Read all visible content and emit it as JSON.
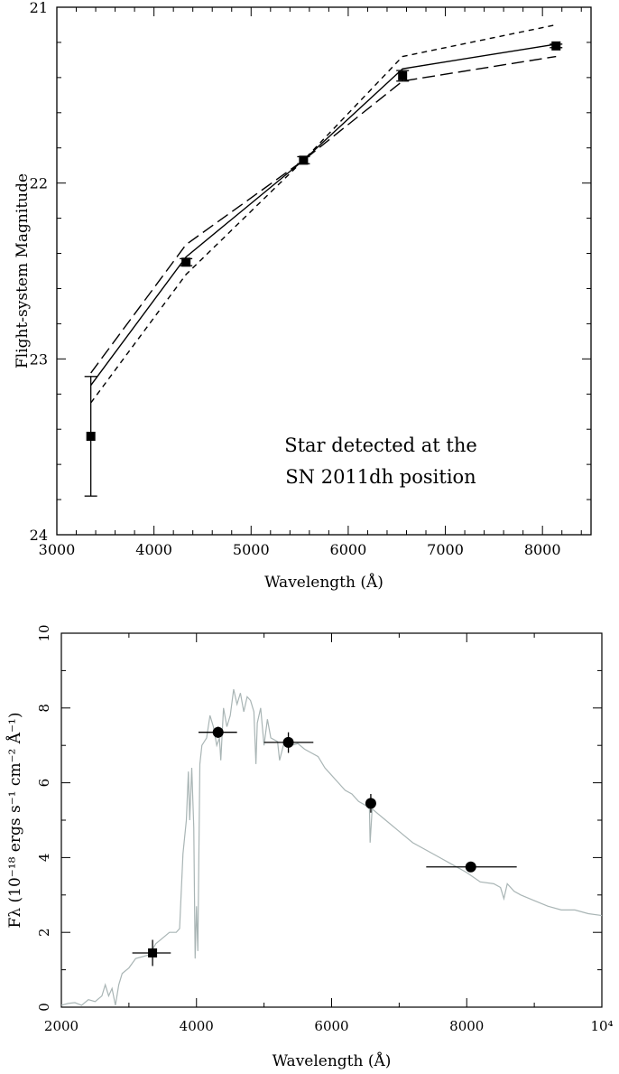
{
  "chart_data": [
    {
      "type": "line",
      "xlabel": "Wavelength (Å)",
      "ylabel": "Flight-system Magnitude",
      "xlim": [
        3000,
        8500
      ],
      "ylim": [
        24,
        21
      ],
      "y_inverted": true,
      "x_ticks": [
        3000,
        4000,
        5000,
        6000,
        7000,
        8000
      ],
      "x_tick_labels": [
        "3000",
        "4000",
        "5000",
        "6000",
        "7000",
        "8000"
      ],
      "y_ticks": [
        21,
        22,
        23,
        24
      ],
      "y_tick_labels": [
        "21",
        "22",
        "23",
        "24"
      ],
      "annotation": [
        "Star detected at the",
        "SN 2011dh position"
      ],
      "grid": false,
      "points": [
        {
          "x": 3350,
          "y": 23.44,
          "ylo": 23.1,
          "yhi": 23.78
        },
        {
          "x": 4330,
          "y": 22.45,
          "ylo": 22.43,
          "yhi": 22.47
        },
        {
          "x": 5540,
          "y": 21.87,
          "ylo": 21.85,
          "yhi": 21.89
        },
        {
          "x": 6560,
          "y": 21.39,
          "ylo": 21.36,
          "yhi": 21.42
        },
        {
          "x": 8140,
          "y": 21.22,
          "ylo": 21.21,
          "yhi": 21.23
        }
      ],
      "series": [
        {
          "style": "solid",
          "x": [
            3350,
            4330,
            5540,
            6560,
            8140
          ],
          "y": [
            23.15,
            22.42,
            21.87,
            21.35,
            21.21
          ]
        },
        {
          "style": "long-dash",
          "x": [
            3350,
            4330,
            5540,
            6560,
            8140
          ],
          "y": [
            23.08,
            22.35,
            21.87,
            21.42,
            21.28
          ]
        },
        {
          "style": "short-dash",
          "x": [
            3350,
            4330,
            5540,
            6560,
            8140
          ],
          "y": [
            23.25,
            22.52,
            21.87,
            21.28,
            21.1
          ]
        }
      ]
    },
    {
      "type": "scatter",
      "xlabel": "Wavelength (Å)",
      "ylabel": "Fλ (10⁻¹⁸ ergs s⁻¹ cm⁻² Å⁻¹)",
      "xlim": [
        2000,
        10000
      ],
      "ylim": [
        0,
        10
      ],
      "x_ticks": [
        2000,
        4000,
        6000,
        8000,
        10000
      ],
      "x_tick_labels": [
        "2000",
        "4000",
        "6000",
        "8000",
        "10⁴"
      ],
      "y_ticks": [
        0,
        2,
        4,
        6,
        8,
        10
      ],
      "y_tick_labels": [
        "0",
        "2",
        "4",
        "6",
        "8",
        "10"
      ],
      "grid": false,
      "spectrum_color": "#a9b5b5",
      "points": [
        {
          "marker": "square",
          "x": 3350,
          "y": 1.45,
          "xlo": 3050,
          "xhi": 3620,
          "ylo": 1.1,
          "yhi": 1.8
        },
        {
          "marker": "circle",
          "x": 4320,
          "y": 7.35,
          "xlo": 4030,
          "xhi": 4600,
          "ylo": 7.2,
          "yhi": 7.5
        },
        {
          "marker": "circle",
          "x": 5360,
          "y": 7.08,
          "xlo": 5000,
          "xhi": 5730,
          "ylo": 6.8,
          "yhi": 7.35
        },
        {
          "marker": "circle",
          "x": 6580,
          "y": 5.45,
          "xlo": 6560,
          "xhi": 6600,
          "ylo": 5.2,
          "yhi": 5.7
        },
        {
          "marker": "circle",
          "x": 8060,
          "y": 3.75,
          "xlo": 7400,
          "xhi": 8740,
          "ylo": 3.65,
          "yhi": 3.85
        }
      ],
      "spectrum": {
        "x": [
          2000,
          2100,
          2200,
          2300,
          2400,
          2500,
          2600,
          2650,
          2700,
          2750,
          2800,
          2850,
          2900,
          3000,
          3100,
          3200,
          3300,
          3400,
          3500,
          3600,
          3700,
          3750,
          3800,
          3850,
          3880,
          3900,
          3930,
          3960,
          3980,
          4000,
          4020,
          4050,
          4080,
          4150,
          4200,
          4250,
          4300,
          4340,
          4360,
          4400,
          4450,
          4500,
          4550,
          4600,
          4650,
          4700,
          4750,
          4800,
          4850,
          4880,
          4900,
          4950,
          5000,
          5050,
          5100,
          5200,
          5230,
          5300,
          5400,
          5500,
          5600,
          5700,
          5800,
          5900,
          6000,
          6100,
          6200,
          6300,
          6400,
          6500,
          6560,
          6570,
          6600,
          6800,
          7000,
          7200,
          7400,
          7600,
          7800,
          8000,
          8200,
          8400,
          8500,
          8550,
          8600,
          8700,
          8800,
          9000,
          9200,
          9400,
          9600,
          9800,
          10000
        ],
        "y": [
          0.05,
          0.1,
          0.12,
          0.05,
          0.2,
          0.15,
          0.3,
          0.6,
          0.3,
          0.5,
          0.05,
          0.6,
          0.9,
          1.05,
          1.3,
          1.35,
          1.4,
          1.7,
          1.85,
          2.0,
          2.0,
          2.1,
          4.1,
          5.0,
          6.3,
          5.0,
          6.4,
          4.8,
          1.3,
          2.7,
          1.5,
          6.5,
          7.0,
          7.2,
          7.8,
          7.5,
          7.0,
          7.2,
          6.6,
          8.0,
          7.5,
          7.8,
          8.5,
          8.1,
          8.4,
          7.9,
          8.3,
          8.2,
          7.9,
          6.5,
          7.6,
          8.0,
          7.0,
          7.7,
          7.2,
          7.1,
          6.6,
          7.1,
          7.0,
          7.05,
          6.9,
          6.8,
          6.7,
          6.4,
          6.2,
          6.0,
          5.8,
          5.7,
          5.5,
          5.4,
          5.3,
          4.4,
          5.3,
          5.0,
          4.7,
          4.4,
          4.2,
          4.0,
          3.8,
          3.6,
          3.35,
          3.3,
          3.2,
          2.9,
          3.3,
          3.1,
          3.0,
          2.85,
          2.7,
          2.6,
          2.6,
          2.5,
          2.45
        ]
      }
    }
  ]
}
